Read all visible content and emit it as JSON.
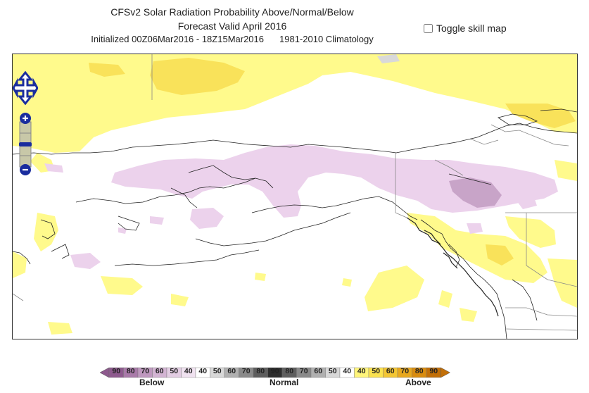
{
  "header": {
    "title": "CFSv2 Solar Radiation Probability Above/Normal/Below",
    "valid": "Forecast Valid April 2016",
    "initialized": "Initialized 00Z06Mar2016 - 18Z15Mar2016",
    "climatology": "1981-2010 Climatology"
  },
  "skill_toggle": {
    "label": "Toggle skill map",
    "checked": false
  },
  "legend": {
    "below_label": "Below",
    "normal_label": "Normal",
    "above_label": "Above",
    "below_ticks": [
      "90",
      "80",
      "70",
      "60",
      "50",
      "40"
    ],
    "normal_ticks": [
      "40",
      "50",
      "60",
      "70",
      "80",
      "90",
      "80",
      "70",
      "60",
      "50",
      "40"
    ],
    "above_ticks": [
      "40",
      "50",
      "60",
      "70",
      "80",
      "90"
    ],
    "below_colors": [
      "#8e5a8e",
      "#a97aa9",
      "#bf98bf",
      "#d3b4d3",
      "#e3cde3",
      "#f0e2f0"
    ],
    "normal_colors": [
      "#ffffff",
      "#d8d8d8",
      "#b0b0b0",
      "#8a8a8a",
      "#5e5e5e",
      "#2e2e2e",
      "#5e5e5e",
      "#8a8a8a",
      "#b0b0b0",
      "#d8d8d8",
      "#ffffff"
    ],
    "above_colors": [
      "#fff57a",
      "#fbe250",
      "#f3c634",
      "#e8a81e",
      "#d98c10",
      "#c26f08"
    ]
  },
  "map": {
    "colors": {
      "above_light": "#fffa8c",
      "above_mid": "#f9e25a",
      "below_light": "#ecd2ec",
      "below_mid": "#c8a4c8",
      "normal_gray": "#d9d9d9",
      "coast": "#222222"
    }
  },
  "controls": {
    "pan_icon": "pan-arrows-icon",
    "zoom_in_icon": "plus-icon",
    "zoom_out_icon": "minus-icon"
  }
}
